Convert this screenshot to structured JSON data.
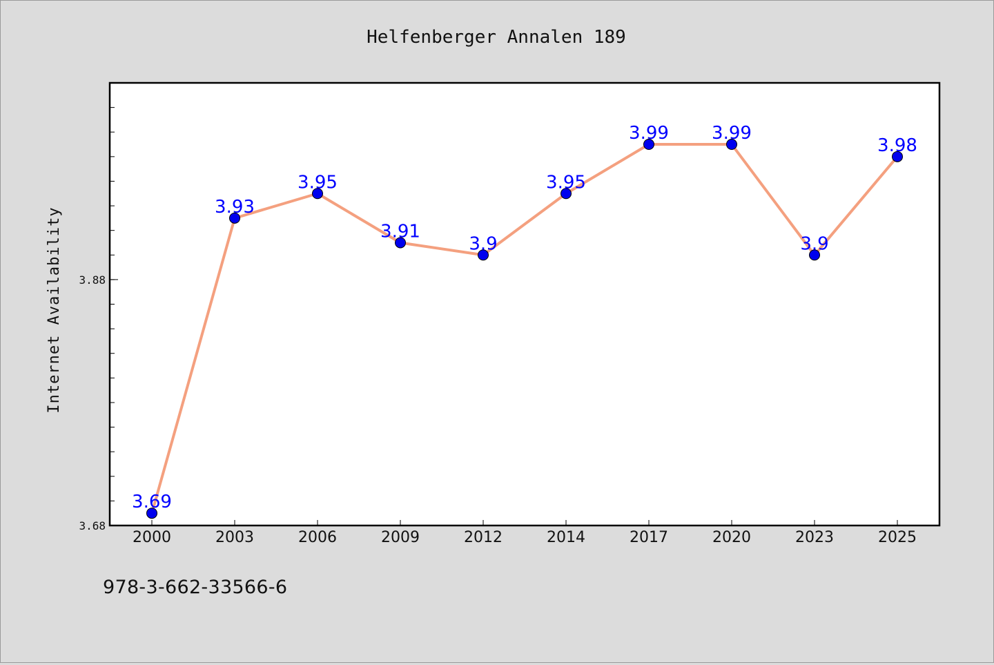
{
  "chart_data": {
    "type": "line",
    "title": "Helfenberger Annalen 189",
    "xlabel": "",
    "ylabel": "Internet Availability",
    "categories": [
      "2000",
      "2003",
      "2006",
      "2009",
      "2012",
      "2014",
      "2017",
      "2020",
      "2023",
      "2025"
    ],
    "series": [
      {
        "values": [
          3.69,
          3.93,
          3.95,
          3.91,
          3.9,
          3.95,
          3.99,
          3.99,
          3.9,
          3.98
        ],
        "labels": [
          "3.69",
          "3.93",
          "3.95",
          "3.91",
          "3.9",
          "3.95",
          "3.99",
          "3.99",
          "3.9",
          "3.98"
        ]
      }
    ],
    "ylim": [
      3.68,
      4.04
    ],
    "yticks": [
      "3.68",
      "3.88"
    ],
    "grid": false,
    "line_color": "#f4a07f",
    "marker_color": "#0000ee",
    "label_color": "#0000ff"
  },
  "footer": {
    "isbn": "978-3-662-33566-6"
  }
}
